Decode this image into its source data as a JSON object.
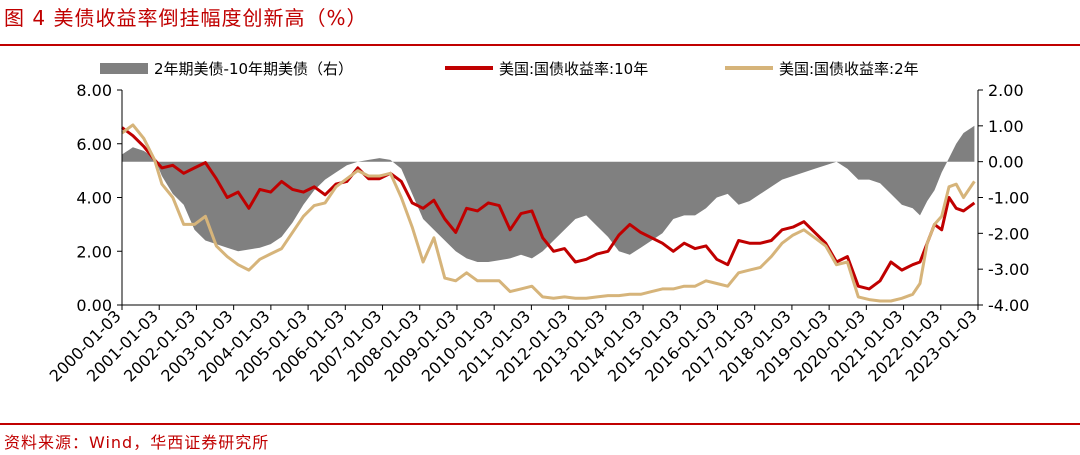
{
  "figure": {
    "title": "图 4  美债收益率倒挂幅度创新高（%）",
    "source": "资料来源：Wind，华西证券研究所"
  },
  "colors": {
    "title": "#c00000",
    "spread": "#808080",
    "y10": "#c00000",
    "y2": "#d6b47a"
  },
  "chart_data": {
    "type": "line",
    "x_ticks": [
      "2000-01-03",
      "2001-01-03",
      "2002-01-03",
      "2003-01-03",
      "2004-01-03",
      "2005-01-03",
      "2006-01-03",
      "2007-01-03",
      "2008-01-03",
      "2009-01-03",
      "2010-01-03",
      "2011-01-03",
      "2012-01-03",
      "2013-01-03",
      "2014-01-03",
      "2015-01-03",
      "2016-01-03",
      "2017-01-03",
      "2018-01-03",
      "2019-01-03",
      "2020-01-03",
      "2021-01-03",
      "2022-01-03",
      "2023-01-03"
    ],
    "y_left": {
      "ticks": [
        "8.00",
        "6.00",
        "4.00",
        "2.00",
        "0.00"
      ],
      "range": [
        0,
        8
      ]
    },
    "y_right": {
      "ticks": [
        "2.00",
        "1.00",
        "0.00",
        "-1.00",
        "-2.00",
        "-3.00",
        "-4.00"
      ],
      "range": [
        -4,
        2
      ]
    },
    "x_range": [
      2000.0,
      2023.6
    ],
    "legend_position": "top",
    "series": [
      {
        "name": "2年期美债-10年期美债（右）",
        "kind": "area",
        "axis": "right",
        "x": [
          2000.0,
          2000.3,
          2000.6,
          2000.9,
          2001.1,
          2001.4,
          2001.7,
          2002.0,
          2002.3,
          2002.6,
          2002.9,
          2003.2,
          2003.5,
          2003.8,
          2004.1,
          2004.4,
          2004.7,
          2005.0,
          2005.3,
          2005.6,
          2005.9,
          2006.2,
          2006.5,
          2006.8,
          2007.1,
          2007.4,
          2007.7,
          2008.0,
          2008.3,
          2008.6,
          2008.9,
          2009.2,
          2009.5,
          2009.8,
          2010.1,
          2010.4,
          2010.7,
          2011.0,
          2011.3,
          2011.6,
          2011.9,
          2012.2,
          2012.5,
          2012.8,
          2013.1,
          2013.4,
          2013.7,
          2014.0,
          2014.3,
          2014.6,
          2014.9,
          2015.2,
          2015.5,
          2015.8,
          2016.1,
          2016.4,
          2016.7,
          2017.0,
          2017.3,
          2017.6,
          2017.9,
          2018.2,
          2018.5,
          2018.8,
          2019.1,
          2019.4,
          2019.7,
          2020.0,
          2020.3,
          2020.6,
          2020.9,
          2021.2,
          2021.5,
          2021.8,
          2022.0,
          2022.2,
          2022.4,
          2022.6,
          2022.8,
          2023.0,
          2023.2,
          2023.5
        ],
        "values": [
          0.2,
          0.4,
          0.3,
          0.1,
          -0.4,
          -0.9,
          -1.2,
          -1.9,
          -2.2,
          -2.3,
          -2.4,
          -2.5,
          -2.45,
          -2.4,
          -2.3,
          -2.1,
          -1.7,
          -1.2,
          -0.8,
          -0.5,
          -0.3,
          -0.1,
          0.0,
          0.05,
          0.1,
          0.05,
          -0.2,
          -0.9,
          -1.6,
          -1.9,
          -2.2,
          -2.5,
          -2.7,
          -2.8,
          -2.8,
          -2.75,
          -2.7,
          -2.6,
          -2.7,
          -2.5,
          -2.2,
          -1.9,
          -1.6,
          -1.5,
          -1.8,
          -2.1,
          -2.5,
          -2.6,
          -2.4,
          -2.2,
          -2.0,
          -1.6,
          -1.5,
          -1.5,
          -1.3,
          -1.0,
          -0.9,
          -1.2,
          -1.1,
          -0.9,
          -0.7,
          -0.5,
          -0.4,
          -0.3,
          -0.2,
          -0.1,
          0.0,
          -0.2,
          -0.5,
          -0.5,
          -0.6,
          -0.9,
          -1.2,
          -1.3,
          -1.5,
          -1.1,
          -0.8,
          -0.3,
          0.1,
          0.5,
          0.8,
          1.0
        ]
      },
      {
        "name": "美国:国债收益率:10年",
        "kind": "line",
        "axis": "left",
        "x": [
          2000.0,
          2000.3,
          2000.6,
          2000.9,
          2001.1,
          2001.4,
          2001.7,
          2002.0,
          2002.3,
          2002.6,
          2002.9,
          2003.2,
          2003.5,
          2003.8,
          2004.1,
          2004.4,
          2004.7,
          2005.0,
          2005.3,
          2005.6,
          2005.9,
          2006.2,
          2006.5,
          2006.8,
          2007.1,
          2007.4,
          2007.7,
          2008.0,
          2008.3,
          2008.6,
          2008.9,
          2009.2,
          2009.5,
          2009.8,
          2010.1,
          2010.4,
          2010.7,
          2011.0,
          2011.3,
          2011.6,
          2011.9,
          2012.2,
          2012.5,
          2012.8,
          2013.1,
          2013.4,
          2013.7,
          2014.0,
          2014.3,
          2014.6,
          2014.9,
          2015.2,
          2015.5,
          2015.8,
          2016.1,
          2016.4,
          2016.7,
          2017.0,
          2017.3,
          2017.6,
          2017.9,
          2018.2,
          2018.5,
          2018.8,
          2019.1,
          2019.4,
          2019.7,
          2020.0,
          2020.3,
          2020.6,
          2020.9,
          2021.2,
          2021.5,
          2021.8,
          2022.0,
          2022.2,
          2022.4,
          2022.6,
          2022.8,
          2023.0,
          2023.2,
          2023.5
        ],
        "values": [
          6.6,
          6.3,
          5.9,
          5.4,
          5.1,
          5.2,
          4.9,
          5.1,
          5.3,
          4.7,
          4.0,
          4.2,
          3.6,
          4.3,
          4.2,
          4.6,
          4.3,
          4.2,
          4.4,
          4.1,
          4.5,
          4.6,
          5.1,
          4.7,
          4.7,
          4.9,
          4.6,
          3.8,
          3.6,
          3.9,
          3.2,
          2.7,
          3.6,
          3.5,
          3.8,
          3.7,
          2.8,
          3.4,
          3.5,
          2.5,
          2.0,
          2.1,
          1.6,
          1.7,
          1.9,
          2.0,
          2.6,
          3.0,
          2.7,
          2.5,
          2.3,
          2.0,
          2.3,
          2.1,
          2.2,
          1.7,
          1.5,
          2.4,
          2.3,
          2.3,
          2.4,
          2.8,
          2.9,
          3.1,
          2.7,
          2.3,
          1.6,
          1.8,
          0.7,
          0.6,
          0.9,
          1.6,
          1.3,
          1.5,
          1.6,
          2.3,
          3.0,
          2.8,
          4.0,
          3.6,
          3.5,
          3.8
        ]
      },
      {
        "name": "美国:国债收益率:2年",
        "kind": "line",
        "axis": "left",
        "x": [
          2000.0,
          2000.3,
          2000.6,
          2000.9,
          2001.1,
          2001.4,
          2001.7,
          2002.0,
          2002.3,
          2002.6,
          2002.9,
          2003.2,
          2003.5,
          2003.8,
          2004.1,
          2004.4,
          2004.7,
          2005.0,
          2005.3,
          2005.6,
          2005.9,
          2006.2,
          2006.5,
          2006.8,
          2007.1,
          2007.4,
          2007.7,
          2008.0,
          2008.3,
          2008.6,
          2008.9,
          2009.2,
          2009.5,
          2009.8,
          2010.1,
          2010.4,
          2010.7,
          2011.0,
          2011.3,
          2011.6,
          2011.9,
          2012.2,
          2012.5,
          2012.8,
          2013.1,
          2013.4,
          2013.7,
          2014.0,
          2014.3,
          2014.6,
          2014.9,
          2015.2,
          2015.5,
          2015.8,
          2016.1,
          2016.4,
          2016.7,
          2017.0,
          2017.3,
          2017.6,
          2017.9,
          2018.2,
          2018.5,
          2018.8,
          2019.1,
          2019.4,
          2019.7,
          2020.0,
          2020.3,
          2020.6,
          2020.9,
          2021.2,
          2021.5,
          2021.8,
          2022.0,
          2022.2,
          2022.4,
          2022.6,
          2022.8,
          2023.0,
          2023.2,
          2023.5
        ],
        "values": [
          6.4,
          6.7,
          6.2,
          5.4,
          4.5,
          4.0,
          3.0,
          3.0,
          3.3,
          2.2,
          1.8,
          1.5,
          1.3,
          1.7,
          1.9,
          2.1,
          2.7,
          3.3,
          3.7,
          3.8,
          4.4,
          4.7,
          5.0,
          4.8,
          4.8,
          4.9,
          4.0,
          2.9,
          1.6,
          2.5,
          1.0,
          0.9,
          1.2,
          0.9,
          0.9,
          0.9,
          0.5,
          0.6,
          0.7,
          0.3,
          0.25,
          0.3,
          0.25,
          0.25,
          0.3,
          0.35,
          0.35,
          0.4,
          0.4,
          0.5,
          0.6,
          0.6,
          0.7,
          0.7,
          0.9,
          0.8,
          0.7,
          1.2,
          1.3,
          1.4,
          1.8,
          2.3,
          2.6,
          2.8,
          2.5,
          2.2,
          1.5,
          1.6,
          0.3,
          0.2,
          0.15,
          0.15,
          0.25,
          0.4,
          0.8,
          2.3,
          3.0,
          3.3,
          4.4,
          4.5,
          4.0,
          4.6
        ]
      }
    ]
  }
}
